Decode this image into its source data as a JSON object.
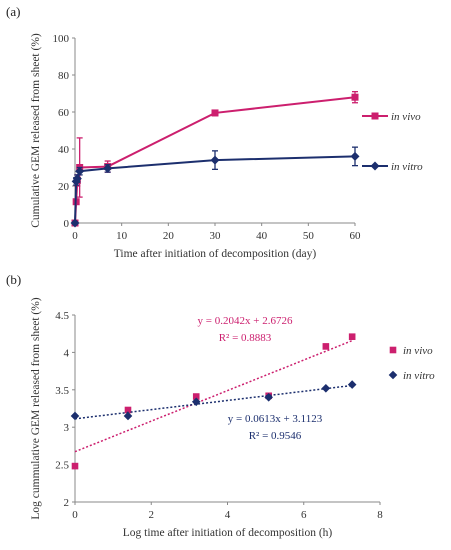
{
  "colors": {
    "in_vivo": "#cc1f6e",
    "in_vitro": "#1c2f6e",
    "axis": "#888888",
    "grid": "#d9d9d9"
  },
  "chart_data": [
    {
      "panel_label": "(a)",
      "type": "line",
      "xlabel": "Time after initiation of decomposition (day)",
      "ylabel": "Cumulative GEM released from sheet (%)",
      "xlim": [
        0,
        60
      ],
      "ylim": [
        0,
        100
      ],
      "xticks": [
        "0",
        "10",
        "20",
        "30",
        "40",
        "50",
        "60"
      ],
      "yticks": [
        "0",
        "20",
        "40",
        "60",
        "80",
        "100"
      ],
      "grid": "none",
      "legend_placement": "right",
      "series": [
        {
          "name": "in vivo",
          "color": "#cc1f6e",
          "marker": "square",
          "points": [
            {
              "x": 0,
              "y": 0
            },
            {
              "x": 0.25,
              "y": 11.5
            },
            {
              "x": 0.5,
              "y": 23
            },
            {
              "x": 1,
              "y": 30
            },
            {
              "x": 7,
              "y": 30.5
            },
            {
              "x": 30,
              "y": 59.5
            },
            {
              "x": 60,
              "y": 68
            }
          ],
          "errors": [
            0,
            0,
            3,
            16,
            3,
            1.5,
            3
          ]
        },
        {
          "name": "in vitro",
          "color": "#1c2f6e",
          "marker": "diamond",
          "points": [
            {
              "x": 0,
              "y": 0
            },
            {
              "x": 0.25,
              "y": 22.5
            },
            {
              "x": 0.5,
              "y": 24
            },
            {
              "x": 1,
              "y": 28
            },
            {
              "x": 7,
              "y": 29.5
            },
            {
              "x": 30,
              "y": 34
            },
            {
              "x": 60,
              "y": 36
            }
          ],
          "errors": [
            0,
            2,
            2,
            2,
            2,
            5,
            5
          ]
        }
      ]
    },
    {
      "panel_label": "(b)",
      "type": "scatter",
      "xlabel": "Log time after initiation of decomposition (h)",
      "ylabel": "Log cummulative GEM released from sheet (%)",
      "xlim": [
        0,
        8
      ],
      "ylim": [
        2,
        4.5
      ],
      "xticks": [
        "0",
        "2",
        "4",
        "6",
        "8"
      ],
      "yticks": [
        "2",
        "2.5",
        "3",
        "3.5",
        "4",
        "4.5"
      ],
      "grid": "none",
      "legend_placement": "right",
      "series": [
        {
          "name": "in vivo",
          "color": "#cc1f6e",
          "marker": "square",
          "points": [
            {
              "x": 0,
              "y": 2.48
            },
            {
              "x": 1.39,
              "y": 3.23
            },
            {
              "x": 3.18,
              "y": 3.41
            },
            {
              "x": 5.08,
              "y": 3.42
            },
            {
              "x": 6.58,
              "y": 4.08
            },
            {
              "x": 7.27,
              "y": 4.21
            }
          ],
          "trendline": {
            "slope": 0.2042,
            "intercept": 2.6726,
            "equation": "y = 0.2042x + 2.6726",
            "r2": "R² = 0.8883"
          }
        },
        {
          "name": "in vitro",
          "color": "#1c2f6e",
          "marker": "diamond",
          "points": [
            {
              "x": 0,
              "y": 3.15
            },
            {
              "x": 1.39,
              "y": 3.15
            },
            {
              "x": 3.18,
              "y": 3.34
            },
            {
              "x": 5.08,
              "y": 3.4
            },
            {
              "x": 6.58,
              "y": 3.52
            },
            {
              "x": 7.27,
              "y": 3.57
            }
          ],
          "trendline": {
            "slope": 0.0613,
            "intercept": 3.1123,
            "equation": "y = 0.0613x + 3.1123",
            "r2": "R² = 0.9546"
          }
        }
      ]
    }
  ]
}
